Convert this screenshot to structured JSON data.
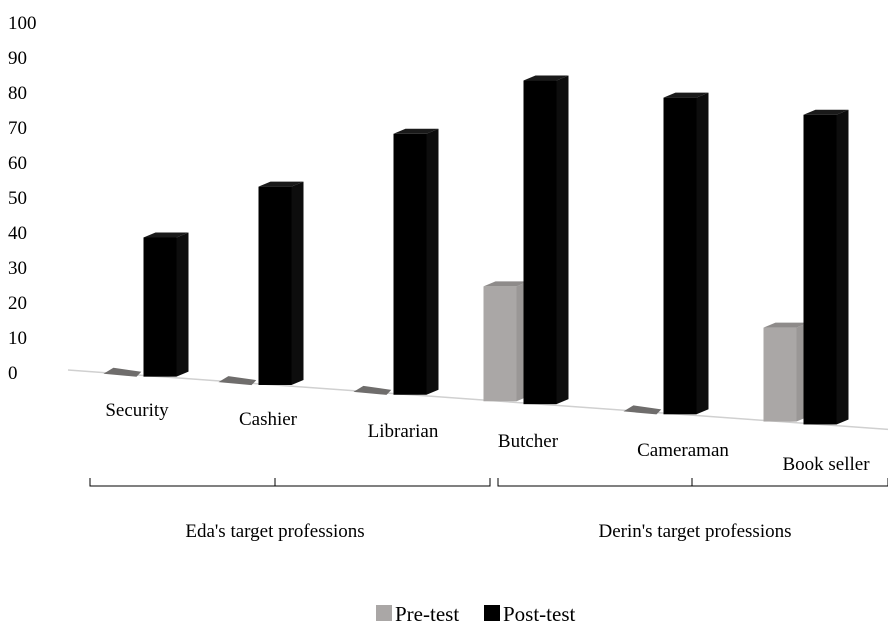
{
  "chart_data": {
    "type": "bar",
    "categories": [
      "Security",
      "Cashier",
      "Librarian",
      "Butcher",
      "Cameraman",
      "Book seller"
    ],
    "series": [
      {
        "name": "Pre-test",
        "values": [
          0,
          0,
          0,
          33,
          0,
          27
        ],
        "color": "#aaa7a6"
      },
      {
        "name": "Post-test",
        "values": [
          40,
          57,
          75,
          93,
          91,
          89
        ],
        "color": "#000000"
      }
    ],
    "yticks": [
      "0",
      "10",
      "20",
      "30",
      "40",
      "50",
      "60",
      "70",
      "80",
      "90",
      "100"
    ],
    "ylim": [
      0,
      100
    ],
    "groups": [
      {
        "label": "Eda's target professions",
        "categories": [
          "Security",
          "Cashier",
          "Librarian"
        ]
      },
      {
        "label": "Derin's target professions",
        "categories": [
          "Butcher",
          "Cameraman",
          "Book seller"
        ]
      }
    ],
    "legend_position": "bottom",
    "grid": false,
    "title": "",
    "xlabel": "",
    "ylabel": ""
  }
}
